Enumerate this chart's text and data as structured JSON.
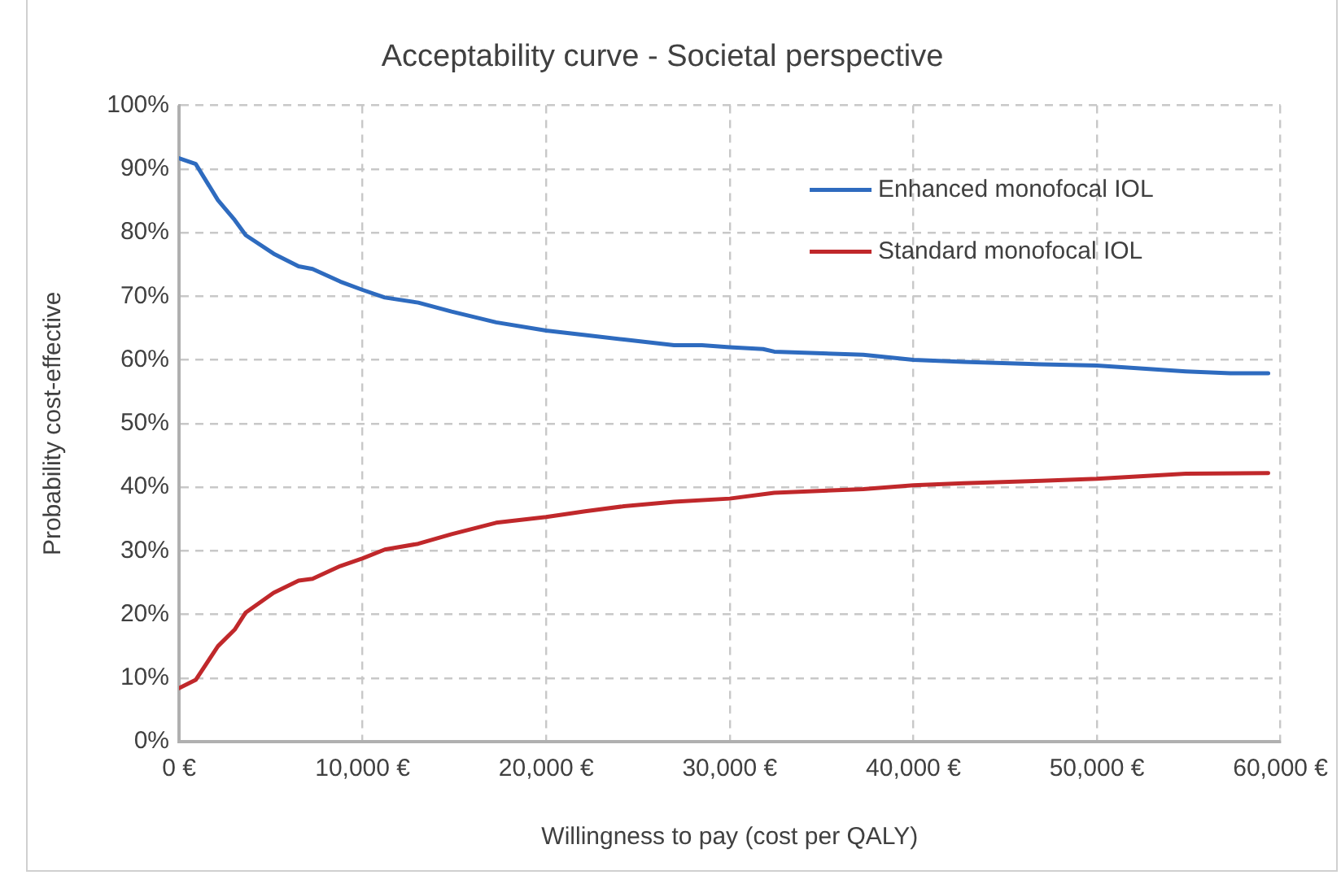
{
  "chart_data": {
    "type": "line",
    "title": "Acceptability curve - Societal perspective",
    "xlabel": "Willingness to pay (cost per QALY)",
    "ylabel": "Probability cost-effective",
    "series": [
      {
        "name": "Enhanced monofocal IOL",
        "color": "#2e6bbf",
        "x": [
          0,
          909,
          2121,
          3030,
          3636,
          5152,
          6515,
          7273,
          8788,
          10000,
          11212,
          13030,
          14848,
          17273,
          20000,
          22121,
          24242,
          26970,
          28485,
          30000,
          31818,
          32424,
          37273,
          40000,
          42727,
          46970,
          50000,
          54848,
          57273,
          59333
        ],
        "values": [
          91.7,
          90.8,
          85.1,
          82.0,
          79.6,
          76.7,
          74.7,
          74.3,
          72.3,
          71.0,
          69.8,
          69.0,
          67.6,
          65.9,
          64.6,
          63.9,
          63.2,
          62.3,
          62.3,
          62.0,
          61.7,
          61.3,
          60.8,
          60.0,
          59.7,
          59.3,
          59.1,
          58.2,
          57.9,
          57.9
        ]
      },
      {
        "name": "Standard monofocal IOL",
        "color": "#c0282b",
        "x": [
          0,
          909,
          2121,
          3030,
          3636,
          5152,
          6515,
          7273,
          8788,
          10000,
          11212,
          13030,
          14848,
          17273,
          20000,
          22121,
          24242,
          26970,
          30000,
          32424,
          37273,
          40000,
          42727,
          46970,
          50000,
          54848,
          59333
        ],
        "values": [
          8.4,
          9.7,
          15.0,
          17.6,
          20.3,
          23.4,
          25.3,
          25.6,
          27.6,
          28.8,
          30.2,
          31.1,
          32.6,
          34.4,
          35.3,
          36.2,
          37.0,
          37.7,
          38.2,
          39.1,
          39.7,
          40.3,
          40.6,
          41.0,
          41.3,
          42.1,
          42.2
        ]
      }
    ],
    "xlim": [
      0,
      60000
    ],
    "xticks": [
      {
        "value": 0,
        "label": "0 €"
      },
      {
        "value": 10000,
        "label": "10,000 €"
      },
      {
        "value": 20000,
        "label": "20,000 €"
      },
      {
        "value": 30000,
        "label": "30,000 €"
      },
      {
        "value": 40000,
        "label": "40,000 €"
      },
      {
        "value": 50000,
        "label": "50,000 €"
      },
      {
        "value": 60000,
        "label": "60,000 €"
      }
    ],
    "ylim": [
      0,
      100
    ],
    "yticks": [
      {
        "value": 0,
        "label": "0%"
      },
      {
        "value": 10,
        "label": "10%"
      },
      {
        "value": 20,
        "label": "20%"
      },
      {
        "value": 30,
        "label": "30%"
      },
      {
        "value": 40,
        "label": "40%"
      },
      {
        "value": 50,
        "label": "50%"
      },
      {
        "value": 60,
        "label": "60%"
      },
      {
        "value": 70,
        "label": "70%"
      },
      {
        "value": 80,
        "label": "80%"
      },
      {
        "value": 90,
        "label": "90%"
      },
      {
        "value": 100,
        "label": "100%"
      }
    ],
    "grid": true,
    "legend": "top right",
    "marker": "none",
    "line_style": "solid"
  }
}
